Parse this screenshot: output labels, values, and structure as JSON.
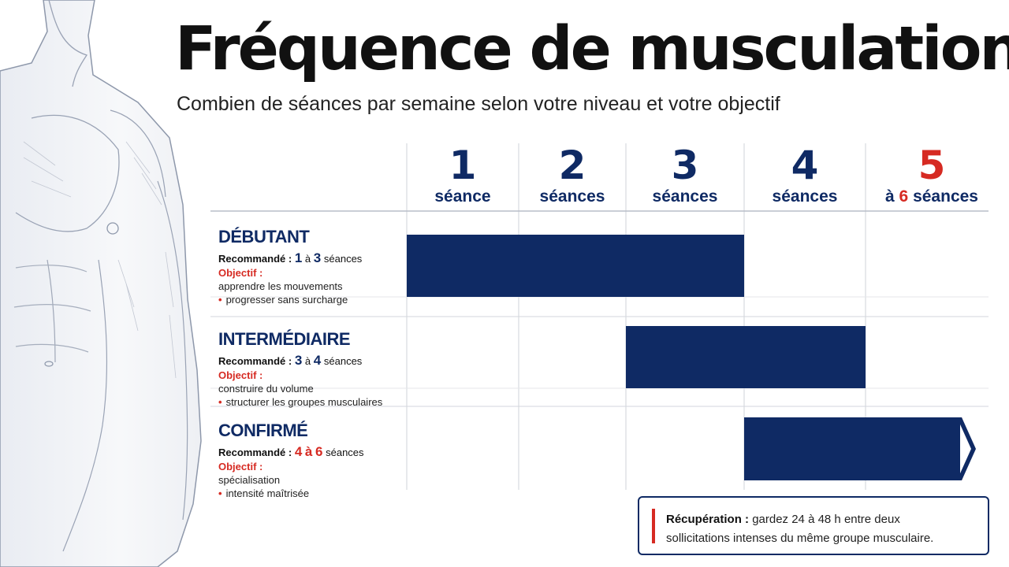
{
  "title": "Fréquence de musculation",
  "subtitle": "Combien de séances par semaine selon votre niveau et votre objectif",
  "chart_data": {
    "type": "bar",
    "orientation": "horizontal-range",
    "categories": [
      {
        "number": "1",
        "label": "séance",
        "prefix": ""
      },
      {
        "number": "2",
        "label": "séances",
        "prefix": ""
      },
      {
        "number": "3",
        "label": "séances",
        "prefix": ""
      },
      {
        "number": "4",
        "label": "séances",
        "prefix": ""
      },
      {
        "number": "5",
        "label": "séances",
        "prefix": "à",
        "suffix_number": "6"
      }
    ],
    "series": [
      {
        "level": "DÉBUTANT",
        "rec_label": "Recommandé :",
        "rec_from": "1",
        "rec_sep": "à",
        "rec_to": "3",
        "rec_unit": "séances",
        "obj_label": "Objectif :",
        "objective": [
          "apprendre les mouvements",
          "progresser sans surcharge"
        ],
        "from": 1,
        "to": 3,
        "color": "#0f2a64",
        "arrow": false
      },
      {
        "level": "INTERMÉDIAIRE",
        "rec_label": "Recommandé :",
        "rec_from": "3",
        "rec_sep": "à",
        "rec_to": "4",
        "rec_unit": "séances",
        "obj_label": "Objectif :",
        "objective": [
          "construire du volume",
          "structurer les groupes musculaires"
        ],
        "from": 3,
        "to": 4,
        "color": "#0f2a64",
        "arrow": false
      },
      {
        "level": "CONFIRMÉ",
        "rec_label": "Recommandé :",
        "rec_from": "4",
        "rec_sep": "à",
        "rec_to": "6",
        "rec_unit": "séances",
        "obj_label": "Objectif :",
        "objective": [
          "spécialisation",
          "intensité maîtrisée"
        ],
        "from": 4,
        "to": 6,
        "color": "#0f2a64",
        "arrow": true,
        "arrow_color": "#d62a22"
      }
    ],
    "accent_color": "#d62a22",
    "grid": true
  },
  "note": {
    "label": "Récupération :",
    "text_1": "gardez 24 à 48 h entre deux",
    "text_2": "sollicitations intenses du même groupe musculaire."
  },
  "figure": {
    "icon": "muscular-torso-illustration"
  }
}
